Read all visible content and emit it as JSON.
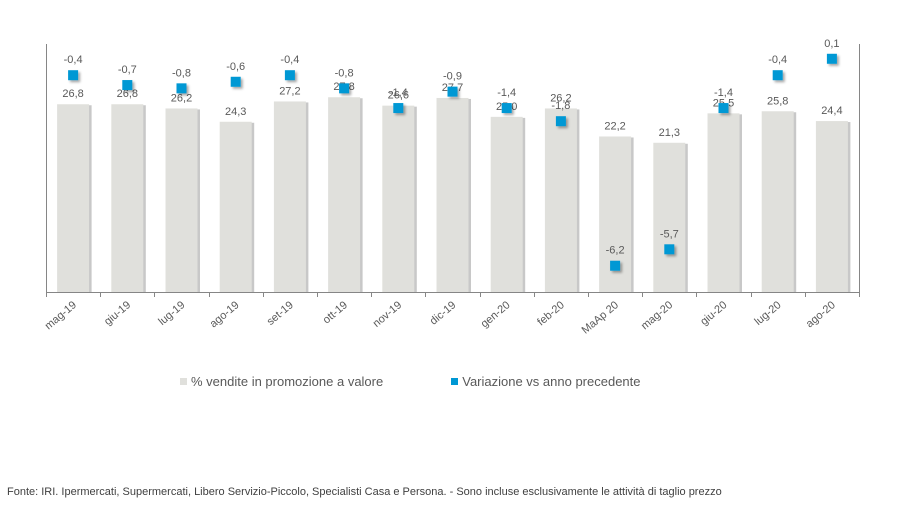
{
  "chart_data": {
    "type": "bar",
    "title": "",
    "xlabel": "",
    "ylabel": "",
    "categories": [
      "mag-19",
      "giu-19",
      "lug-19",
      "ago-19",
      "set-19",
      "ott-19",
      "nov-19",
      "dic-19",
      "gen-20",
      "feb-20",
      "MaAp 20",
      "mag-20",
      "giu-20",
      "lug-20",
      "ago-20"
    ],
    "series": [
      {
        "name": "% vendite in promozione a valore",
        "type": "bar",
        "axis": "primary",
        "color": "#e0e0dc",
        "values": [
          26.8,
          26.8,
          26.2,
          24.3,
          27.2,
          27.8,
          26.6,
          27.7,
          25.0,
          26.2,
          22.2,
          21.3,
          25.5,
          25.8,
          24.4
        ],
        "labels": [
          "26,8",
          "26,8",
          "26,2",
          "24,3",
          "27,2",
          "27,8",
          "26,6",
          "27,7",
          "25,0",
          "26,2",
          "22,2",
          "21,3",
          "25,5",
          "25,8",
          "24,4"
        ]
      },
      {
        "name": "Variazione vs anno precedente",
        "type": "scatter",
        "axis": "secondary",
        "color": "#0098d4",
        "values": [
          -0.4,
          -0.7,
          -0.8,
          -0.6,
          -0.4,
          -0.8,
          -1.4,
          -0.9,
          -1.4,
          -1.8,
          -6.2,
          -5.7,
          -1.4,
          -0.4,
          0.1
        ],
        "labels": [
          "-0,4",
          "-0,7",
          "-0,8",
          "-0,6",
          "-0,4",
          "-0,8",
          "-1,4",
          "-0,9",
          "-1,4",
          "-1,8",
          "-6,2",
          "-5,7",
          "-1,4",
          "-0,4",
          "0,1"
        ]
      }
    ],
    "ylim": [
      0,
      35.4
    ],
    "y2lim": [
      -7.0,
      0.55
    ],
    "grid": false,
    "legend_position": "bottom"
  },
  "footer": "Fonte: IRI. Ipermercati, Supermercati, Libero Servizio-Piccolo, Specialisti Casa e Persona. - Sono incluse esclusivamente le attività di taglio prezzo"
}
